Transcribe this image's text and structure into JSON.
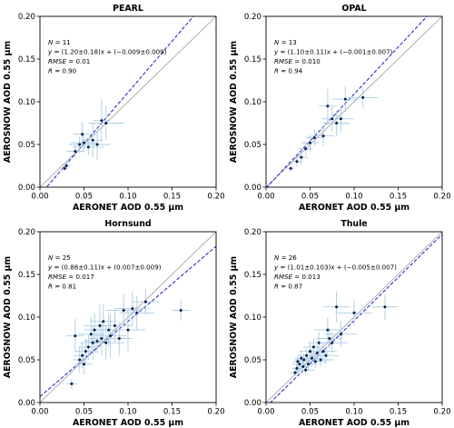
{
  "chart_data": [
    {
      "type": "scatter",
      "title": "PEARL",
      "xlabel": "AERONET AOD 0.55 μm",
      "ylabel": "AEROSNOW AOD 0.55 μm",
      "xlim": [
        0,
        0.2
      ],
      "ylim": [
        0,
        0.2
      ],
      "xticks": [
        "0.00",
        "0.05",
        "0.10",
        "0.15",
        "0.20"
      ],
      "yticks": [
        "0.00",
        "0.05",
        "0.10",
        "0.15",
        "0.20"
      ],
      "stats": [
        "N = 11",
        "y = (1.20±0.18)x + (−0.009±0.009)",
        "RMSE = 0.01",
        "R = 0.90"
      ],
      "fit": {
        "slope": 1.2,
        "intercept": -0.009
      },
      "x": [
        0.028,
        0.03,
        0.04,
        0.045,
        0.048,
        0.05,
        0.055,
        0.06,
        0.065,
        0.07,
        0.075
      ],
      "y": [
        0.022,
        0.025,
        0.042,
        0.05,
        0.062,
        0.052,
        0.047,
        0.055,
        0.05,
        0.078,
        0.075
      ],
      "xerr": [
        0.004,
        0.005,
        0.01,
        0.012,
        0.01,
        0.015,
        0.018,
        0.012,
        0.015,
        0.01,
        0.02
      ],
      "yerr": [
        0.003,
        0.004,
        0.008,
        0.01,
        0.015,
        0.012,
        0.01,
        0.02,
        0.018,
        0.025,
        0.02
      ]
    },
    {
      "type": "scatter",
      "title": "OPAL",
      "xlabel": "AERONET AOD 0.55 μm",
      "ylabel": "AEROSNOW AOD 0.55 μm",
      "xlim": [
        0,
        0.2
      ],
      "ylim": [
        0,
        0.2
      ],
      "xticks": [
        "0.00",
        "0.05",
        "0.10",
        "0.15",
        "0.20"
      ],
      "yticks": [
        "0.00",
        "0.05",
        "0.10",
        "0.15",
        "0.20"
      ],
      "stats": [
        "N = 13",
        "y = (1.10±0.11)x + (−0.001±0.007)",
        "RMSE = 0.010",
        "R = 0.94"
      ],
      "fit": {
        "slope": 1.1,
        "intercept": -0.001
      },
      "x": [
        0.028,
        0.035,
        0.04,
        0.045,
        0.05,
        0.055,
        0.065,
        0.07,
        0.075,
        0.08,
        0.085,
        0.09,
        0.11
      ],
      "y": [
        0.022,
        0.03,
        0.035,
        0.045,
        0.052,
        0.058,
        0.06,
        0.095,
        0.08,
        0.075,
        0.08,
        0.103,
        0.105
      ],
      "xerr": [
        0.004,
        0.006,
        0.008,
        0.008,
        0.01,
        0.01,
        0.012,
        0.01,
        0.012,
        0.015,
        0.015,
        0.015,
        0.018
      ],
      "yerr": [
        0.004,
        0.006,
        0.008,
        0.008,
        0.01,
        0.01,
        0.012,
        0.02,
        0.015,
        0.015,
        0.015,
        0.015,
        0.012
      ]
    },
    {
      "type": "scatter",
      "title": "Hornsund",
      "xlabel": "AERONET AOD 0.55 μm",
      "ylabel": "AEROSNOW AOD 0.55 μm",
      "xlim": [
        0,
        0.2
      ],
      "ylim": [
        0,
        0.2
      ],
      "xticks": [
        "0.00",
        "0.05",
        "0.10",
        "0.15",
        "0.20"
      ],
      "yticks": [
        "0.00",
        "0.05",
        "0.10",
        "0.15",
        "0.20"
      ],
      "stats": [
        "N = 25",
        "y = (0.88±0.11)x + (0.007±0.009)",
        "RMSE = 0.017",
        "R = 0.81"
      ],
      "fit": {
        "slope": 0.88,
        "intercept": 0.007
      },
      "x": [
        0.036,
        0.04,
        0.045,
        0.048,
        0.05,
        0.052,
        0.055,
        0.058,
        0.06,
        0.062,
        0.065,
        0.068,
        0.07,
        0.072,
        0.075,
        0.078,
        0.08,
        0.085,
        0.09,
        0.095,
        0.1,
        0.105,
        0.11,
        0.12,
        0.16
      ],
      "y": [
        0.022,
        0.078,
        0.05,
        0.055,
        0.045,
        0.06,
        0.065,
        0.08,
        0.07,
        0.085,
        0.072,
        0.09,
        0.075,
        0.095,
        0.07,
        0.085,
        0.078,
        0.09,
        0.075,
        0.108,
        0.085,
        0.11,
        0.105,
        0.118,
        0.108
      ],
      "xerr": [
        0.006,
        0.01,
        0.008,
        0.01,
        0.01,
        0.012,
        0.012,
        0.015,
        0.015,
        0.012,
        0.015,
        0.018,
        0.015,
        0.015,
        0.02,
        0.015,
        0.018,
        0.02,
        0.015,
        0.02,
        0.02,
        0.02,
        0.02,
        0.015,
        0.01
      ],
      "yerr": [
        0.006,
        0.02,
        0.015,
        0.015,
        0.012,
        0.015,
        0.015,
        0.02,
        0.02,
        0.02,
        0.015,
        0.025,
        0.02,
        0.02,
        0.02,
        0.02,
        0.025,
        0.02,
        0.02,
        0.02,
        0.025,
        0.02,
        0.02,
        0.015,
        0.012
      ]
    },
    {
      "type": "scatter",
      "title": "Thule",
      "xlabel": "AERONET AOD 0.55 μm",
      "ylabel": "AEROSNOW AOD 0.55 μm",
      "xlim": [
        0,
        0.2
      ],
      "ylim": [
        0,
        0.2
      ],
      "xticks": [
        "0.00",
        "0.05",
        "0.10",
        "0.15",
        "0.20"
      ],
      "yticks": [
        "0.00",
        "0.05",
        "0.10",
        "0.15",
        "0.20"
      ],
      "stats": [
        "N = 26",
        "y = (1.01±0.103)x + (−0.005±0.007)",
        "RMSE = 0.013",
        "R = 0.87"
      ],
      "fit": {
        "slope": 1.01,
        "intercept": -0.005
      },
      "x": [
        0.033,
        0.035,
        0.036,
        0.038,
        0.04,
        0.042,
        0.043,
        0.045,
        0.046,
        0.048,
        0.05,
        0.052,
        0.054,
        0.056,
        0.058,
        0.06,
        0.062,
        0.065,
        0.068,
        0.07,
        0.072,
        0.075,
        0.08,
        0.085,
        0.1,
        0.135
      ],
      "y": [
        0.035,
        0.04,
        0.048,
        0.045,
        0.052,
        0.042,
        0.05,
        0.038,
        0.055,
        0.045,
        0.06,
        0.052,
        0.065,
        0.048,
        0.058,
        0.07,
        0.05,
        0.06,
        0.055,
        0.085,
        0.075,
        0.07,
        0.112,
        0.08,
        0.105,
        0.112
      ],
      "xerr": [
        0.005,
        0.006,
        0.006,
        0.008,
        0.008,
        0.008,
        0.01,
        0.01,
        0.01,
        0.01,
        0.012,
        0.012,
        0.012,
        0.012,
        0.012,
        0.012,
        0.015,
        0.015,
        0.015,
        0.015,
        0.015,
        0.018,
        0.015,
        0.018,
        0.02,
        0.015
      ],
      "yerr": [
        0.004,
        0.005,
        0.006,
        0.006,
        0.008,
        0.006,
        0.008,
        0.006,
        0.008,
        0.008,
        0.01,
        0.01,
        0.01,
        0.008,
        0.01,
        0.012,
        0.008,
        0.01,
        0.01,
        0.015,
        0.012,
        0.012,
        0.018,
        0.015,
        0.015,
        0.015
      ]
    }
  ],
  "colors": {
    "point": "#0b1e4a",
    "errorbar": "#a9cde3",
    "fit_line": "#1b1bcc",
    "identity_line": "#9a9a9a",
    "axis": "#000000"
  }
}
